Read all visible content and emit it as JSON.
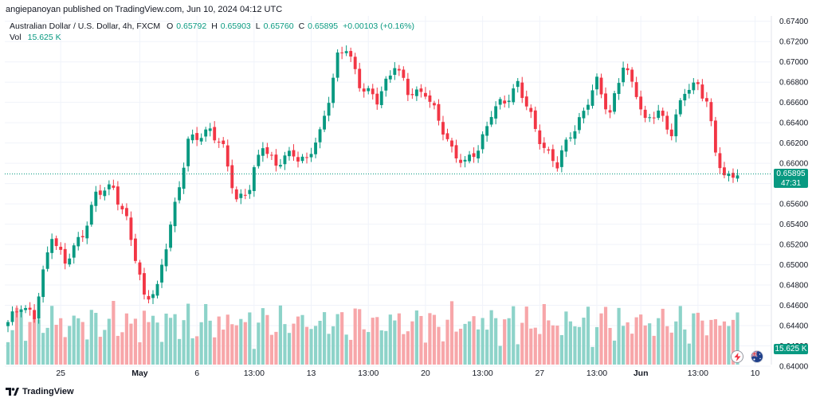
{
  "header": {
    "publisher": "angiepanoyan published on TradingView.com, Jun 10, 2024 04:12 UTC",
    "symbol": "Australian Dollar / U.S. Dollar, 4h, FXCM",
    "open_label": "O",
    "open": "0.65792",
    "high_label": "H",
    "high": "0.65903",
    "low_label": "L",
    "low": "0.65760",
    "close_label": "C",
    "close": "0.65895",
    "change": "+0.00103 (+0.16%)",
    "vol_label": "Vol",
    "vol": "15.625 K"
  },
  "price_tag": {
    "price": "0.65895",
    "countdown": "47:31"
  },
  "volume_tag": "15.625 K",
  "footer": {
    "brand": "TradingView"
  },
  "colors": {
    "up": "#089981",
    "down": "#f23645",
    "vol_up": "#8dd3c9",
    "vol_down": "#f7a6a9",
    "grid": "#f0f3fa"
  },
  "icons": {
    "lightning": "lightning-icon",
    "flag": "australia-flag-icon",
    "brand": "tradingview-logo-icon"
  },
  "chart_data": {
    "type": "candlestick",
    "y_ticks": [
      "0.67400",
      "0.67200",
      "0.67000",
      "0.66800",
      "0.66600",
      "0.66400",
      "0.66200",
      "0.66000",
      "0.65800",
      "0.65600",
      "0.65400",
      "0.65200",
      "0.65000",
      "0.64800",
      "0.64600",
      "0.64400",
      "0.64200",
      "0.64000"
    ],
    "ylim": [
      0.64,
      0.675
    ],
    "x_ticks": [
      {
        "index": 12,
        "label": "25",
        "bold": false
      },
      {
        "index": 30,
        "label": "May",
        "bold": true
      },
      {
        "index": 43,
        "label": "6",
        "bold": false
      },
      {
        "index": 56,
        "label": "13:00",
        "bold": false
      },
      {
        "index": 69,
        "label": "13",
        "bold": false
      },
      {
        "index": 82,
        "label": "13:00",
        "bold": false
      },
      {
        "index": 95,
        "label": "20",
        "bold": false
      },
      {
        "index": 108,
        "label": "13:00",
        "bold": false
      },
      {
        "index": 121,
        "label": "27",
        "bold": false
      },
      {
        "index": 134,
        "label": "13:00",
        "bold": false
      },
      {
        "index": 144,
        "label": "Jun",
        "bold": true
      },
      {
        "index": 157,
        "label": "13:00",
        "bold": false
      },
      {
        "index": 170,
        "label": "10",
        "bold": false
      }
    ],
    "current_price": 0.65895,
    "candles": []
  }
}
